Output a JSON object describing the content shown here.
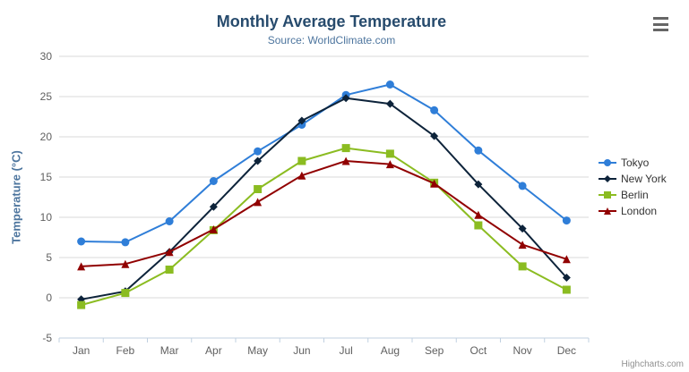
{
  "header": {
    "title": "Monthly Average Temperature",
    "subtitle": "Source: WorldClimate.com",
    "menu_icon": "hamburger-icon"
  },
  "credits": {
    "label": "Highcharts.com"
  },
  "chart_data": {
    "type": "line",
    "title": "Monthly Average Temperature",
    "subtitle": "Source: WorldClimate.com",
    "xlabel": "",
    "ylabel": "Temperature (°C)",
    "ylim": [
      -5,
      30
    ],
    "ytick_step": 5,
    "ytick_labels": [
      "-5",
      "0",
      "5",
      "10",
      "15",
      "20",
      "25",
      "30"
    ],
    "grid": true,
    "legend_position": "right",
    "categories": [
      "Jan",
      "Feb",
      "Mar",
      "Apr",
      "May",
      "Jun",
      "Jul",
      "Aug",
      "Sep",
      "Oct",
      "Nov",
      "Dec"
    ],
    "series": [
      {
        "name": "Tokyo",
        "color": "#2f7ed8",
        "marker": "circle",
        "values": [
          7.0,
          6.9,
          9.5,
          14.5,
          18.2,
          21.5,
          25.2,
          26.5,
          23.3,
          18.3,
          13.9,
          9.6
        ]
      },
      {
        "name": "New York",
        "color": "#0d233a",
        "marker": "diamond",
        "values": [
          -0.2,
          0.8,
          5.7,
          11.3,
          17.0,
          22.0,
          24.8,
          24.1,
          20.1,
          14.1,
          8.6,
          2.5
        ]
      },
      {
        "name": "Berlin",
        "color": "#8bbc21",
        "marker": "square",
        "values": [
          -0.9,
          0.6,
          3.5,
          8.4,
          13.5,
          17.0,
          18.6,
          17.9,
          14.3,
          9.0,
          3.9,
          1.0
        ]
      },
      {
        "name": "London",
        "color": "#910000",
        "marker": "triangle",
        "values": [
          3.9,
          4.2,
          5.7,
          8.5,
          11.9,
          15.2,
          17.0,
          16.6,
          14.2,
          10.3,
          6.6,
          4.8
        ]
      }
    ],
    "axis_colors": {
      "grid": "#d8d8d8",
      "axis_line": "#c0d0e0",
      "labels": "#606060"
    }
  }
}
